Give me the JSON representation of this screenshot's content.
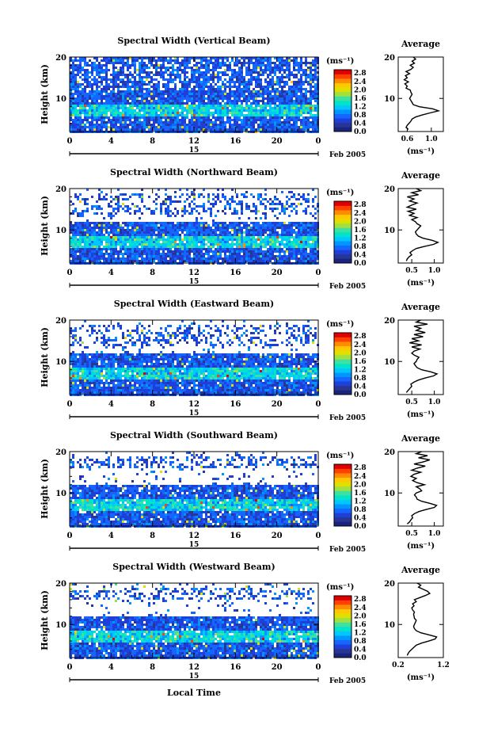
{
  "figure": {
    "xlabel": "Local Time",
    "date_day": "15",
    "date_month": "Feb 2005"
  },
  "colorbar": {
    "unit": "(ms⁻¹)",
    "ticks": [
      "0.0",
      "0.4",
      "0.8",
      "1.2",
      "1.6",
      "2.0",
      "2.4",
      "2.8"
    ],
    "colors": [
      "#1a237e",
      "#283593",
      "#1e3fd8",
      "#1565ff",
      "#0096ff",
      "#00c8ff",
      "#00e5c8",
      "#40e0a0",
      "#a0e040",
      "#e0e000",
      "#ffc800",
      "#ff8c00",
      "#ff4000",
      "#e00000"
    ]
  },
  "chart_data": [
    {
      "type": "heatmap",
      "title": "Spectral Width (Vertical Beam)",
      "ylabel": "Height (km)",
      "xlim": [
        0,
        24
      ],
      "ylim": [
        2,
        20
      ],
      "xticks": [
        "0",
        "4",
        "8",
        "12",
        "16",
        "20",
        "0"
      ],
      "yticks": [
        "10",
        "20"
      ],
      "zlim": [
        0.0,
        2.8
      ],
      "upper_band": [
        12,
        20
      ],
      "profile": {
        "title": "Average",
        "xlabel": "(ms⁻¹)",
        "xlim": [
          0.45,
          1.2
        ],
        "xticks": [
          "0.6",
          "1.0"
        ],
        "xtick_values": [
          0.6,
          1.0
        ],
        "yticks": [
          "10",
          "20"
        ],
        "height": [
          2.5,
          3,
          3.5,
          4,
          4.5,
          5,
          5.5,
          6,
          6.5,
          7,
          7.5,
          8,
          8.5,
          9,
          9.5,
          10,
          10.5,
          11,
          11.5,
          12,
          12.5,
          13,
          13.5,
          14,
          14.5,
          15,
          15.5,
          16,
          16.5,
          17,
          17.5,
          18,
          18.5,
          19,
          19.5,
          20
        ],
        "value": [
          0.62,
          0.58,
          0.6,
          0.63,
          0.66,
          0.68,
          0.74,
          0.85,
          0.98,
          1.12,
          1.02,
          0.8,
          0.7,
          0.68,
          0.66,
          0.64,
          0.66,
          0.68,
          0.66,
          0.65,
          0.58,
          0.6,
          0.56,
          0.62,
          0.55,
          0.6,
          0.57,
          0.64,
          0.58,
          0.66,
          0.7,
          0.65,
          0.72,
          0.68,
          0.74,
          0.7
        ]
      }
    },
    {
      "type": "heatmap",
      "title": "Spectral Width (Northward Beam)",
      "ylabel": "Height (km)",
      "xlim": [
        0,
        24
      ],
      "ylim": [
        2,
        20
      ],
      "xticks": [
        "0",
        "4",
        "8",
        "12",
        "16",
        "20",
        "0"
      ],
      "yticks": [
        "10",
        "20"
      ],
      "zlim": [
        0.0,
        2.8
      ],
      "upper_band": [
        14,
        19
      ],
      "profile": {
        "title": "Average",
        "xlabel": "(ms⁻¹)",
        "xlim": [
          0.2,
          1.2
        ],
        "xticks": [
          "0.5",
          "1.0"
        ],
        "xtick_values": [
          0.5,
          1.0
        ],
        "yticks": [
          "10",
          "20"
        ],
        "height": [
          2.5,
          3,
          3.5,
          4,
          4.5,
          5,
          5.5,
          6,
          6.5,
          7,
          7.5,
          8,
          8.5,
          9,
          9.5,
          10,
          10.5,
          11,
          11.5,
          12,
          12.5,
          13,
          13.5,
          14,
          14.5,
          15,
          15.5,
          16,
          16.5,
          17,
          17.5,
          18,
          18.5,
          19,
          19.5,
          20
        ],
        "value": [
          0.38,
          0.4,
          0.44,
          0.5,
          0.46,
          0.52,
          0.6,
          0.78,
          0.98,
          1.08,
          0.95,
          0.75,
          0.65,
          0.6,
          0.58,
          0.62,
          0.66,
          0.7,
          0.62,
          0.58,
          0.5,
          0.62,
          0.45,
          0.55,
          0.42,
          0.6,
          0.4,
          0.5,
          0.62,
          0.45,
          0.55,
          0.4,
          0.65,
          0.5,
          0.7,
          0.6
        ]
      }
    },
    {
      "type": "heatmap",
      "title": "Spectral Width (Eastward Beam)",
      "ylabel": "Height (km)",
      "xlim": [
        0,
        24
      ],
      "ylim": [
        2,
        20
      ],
      "xticks": [
        "0",
        "4",
        "8",
        "12",
        "16",
        "20",
        "0"
      ],
      "yticks": [
        "10",
        "20"
      ],
      "zlim": [
        0.0,
        2.8
      ],
      "upper_band": [
        14,
        19
      ],
      "profile": {
        "title": "Average",
        "xlabel": "(ms⁻¹)",
        "xlim": [
          0.2,
          1.2
        ],
        "xticks": [
          "0.5",
          "1.0"
        ],
        "xtick_values": [
          0.5,
          1.0
        ],
        "yticks": [
          "10",
          "20"
        ],
        "height": [
          2.5,
          3,
          3.5,
          4,
          4.5,
          5,
          5.5,
          6,
          6.5,
          7,
          7.5,
          8,
          8.5,
          9,
          9.5,
          10,
          10.5,
          11,
          11.5,
          12,
          12.5,
          13,
          13.5,
          14,
          14.5,
          15,
          15.5,
          16,
          16.5,
          17,
          17.5,
          18,
          18.5,
          19,
          19.5,
          20
        ],
        "value": [
          0.38,
          0.42,
          0.46,
          0.5,
          0.48,
          0.55,
          0.65,
          0.8,
          0.98,
          1.06,
          0.92,
          0.72,
          0.62,
          0.58,
          0.55,
          0.6,
          0.62,
          0.66,
          0.56,
          0.5,
          0.55,
          0.68,
          0.5,
          0.72,
          0.45,
          0.65,
          0.5,
          0.75,
          0.55,
          0.8,
          0.6,
          0.7,
          0.55,
          0.85,
          0.6,
          0.7
        ]
      }
    },
    {
      "type": "heatmap",
      "title": "Spectral Width (Southward Beam)",
      "ylabel": "Height (km)",
      "xlim": [
        0,
        24
      ],
      "ylim": [
        2,
        20
      ],
      "xticks": [
        "0",
        "4",
        "8",
        "12",
        "16",
        "20",
        "0"
      ],
      "yticks": [
        "10",
        "20"
      ],
      "zlim": [
        0.0,
        2.8
      ],
      "upper_band": [
        16,
        19
      ],
      "profile": {
        "title": "Average",
        "xlabel": "(ms⁻¹)",
        "xlim": [
          0.2,
          1.2
        ],
        "xticks": [
          "0.5",
          "1.0"
        ],
        "xtick_values": [
          0.5,
          1.0
        ],
        "yticks": [
          "10",
          "20"
        ],
        "height": [
          2.5,
          3,
          3.5,
          4,
          4.5,
          5,
          5.5,
          6,
          6.5,
          7,
          7.5,
          8,
          8.5,
          9,
          9.5,
          10,
          10.5,
          11,
          11.5,
          12,
          12.5,
          13,
          13.5,
          14,
          14.5,
          15,
          15.5,
          16,
          16.5,
          17,
          17.5,
          18,
          18.5,
          19,
          19.5,
          20
        ],
        "value": [
          0.4,
          0.45,
          0.48,
          0.52,
          0.5,
          0.56,
          0.66,
          0.82,
          1.0,
          1.05,
          0.9,
          0.72,
          0.62,
          0.6,
          0.56,
          0.6,
          0.72,
          0.68,
          0.6,
          0.78,
          0.62,
          0.52,
          0.6,
          0.48,
          0.55,
          0.7,
          0.5,
          0.62,
          0.8,
          0.55,
          0.75,
          0.9,
          0.65,
          0.85,
          0.6,
          0.72
        ]
      }
    },
    {
      "type": "heatmap",
      "title": "Spectral Width (Westward Beam)",
      "ylabel": "Height (km)",
      "xlim": [
        0,
        24
      ],
      "ylim": [
        2,
        20
      ],
      "xticks": [
        "0",
        "4",
        "8",
        "12",
        "16",
        "20",
        "0"
      ],
      "yticks": [
        "10",
        "20"
      ],
      "zlim": [
        0.0,
        2.8
      ],
      "upper_band": [
        16,
        19
      ],
      "profile": {
        "title": "Average",
        "xlabel": "(ms⁻¹)",
        "xlim": [
          0.2,
          1.2
        ],
        "xticks": [
          "0.2",
          "1.2"
        ],
        "xtick_values": [
          0.2,
          1.2
        ],
        "yticks": [
          "10",
          "20"
        ],
        "height": [
          2.5,
          3,
          3.5,
          4,
          4.5,
          5,
          5.5,
          6,
          6.5,
          7,
          7.5,
          8,
          8.5,
          9,
          9.5,
          10,
          10.5,
          11,
          11.5,
          12,
          12.5,
          13,
          13.5,
          14,
          14.5,
          15,
          15.5,
          16,
          16.5,
          17,
          17.5,
          18,
          18.5,
          19,
          19.5,
          20
        ],
        "value": [
          0.4,
          0.42,
          0.45,
          0.5,
          0.55,
          0.6,
          0.72,
          0.88,
          1.02,
          1.05,
          0.88,
          0.7,
          0.6,
          0.56,
          0.54,
          0.56,
          0.58,
          0.6,
          0.56,
          0.55,
          0.54,
          0.56,
          0.52,
          0.5,
          0.55,
          0.52,
          0.6,
          0.56,
          0.68,
          0.8,
          0.9,
          0.85,
          0.75,
          0.65,
          0.7,
          0.62
        ]
      }
    }
  ]
}
